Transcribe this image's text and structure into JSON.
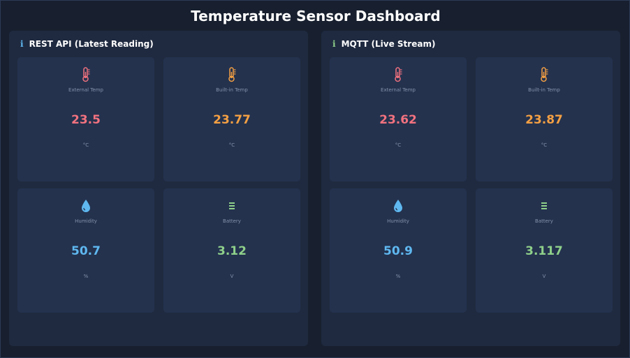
{
  "header": {
    "title": "Temperature Sensor Dashboard"
  },
  "colors": {
    "external_temp": "#f2727f",
    "builtin_temp": "#f5a043",
    "humidity": "#5fb8f0",
    "battery": "#8fd08a",
    "info_rest": "#5fb8f0",
    "info_mqtt": "#8fd08a"
  },
  "panels": [
    {
      "title": "REST API (Latest Reading)",
      "info_icon": "i",
      "cards": [
        {
          "icon": "thermometer-icon",
          "label": "External Temp",
          "value": "23.5",
          "unit": "°C"
        },
        {
          "icon": "thermometer-icon",
          "label": "Built-in Temp",
          "value": "23.77",
          "unit": "°C"
        },
        {
          "icon": "droplet-icon",
          "label": "Humidity",
          "value": "50.7",
          "unit": "%"
        },
        {
          "icon": "battery-icon",
          "label": "Battery",
          "value": "3.12",
          "unit": "V"
        }
      ]
    },
    {
      "title": "MQTT (Live Stream)",
      "info_icon": "i",
      "cards": [
        {
          "icon": "thermometer-icon",
          "label": "External Temp",
          "value": "23.62",
          "unit": "°C"
        },
        {
          "icon": "thermometer-icon",
          "label": "Built-in Temp",
          "value": "23.87",
          "unit": "°C"
        },
        {
          "icon": "droplet-icon",
          "label": "Humidity",
          "value": "50.9",
          "unit": "%"
        },
        {
          "icon": "battery-icon",
          "label": "Battery",
          "value": "3.117",
          "unit": "V"
        }
      ]
    }
  ]
}
